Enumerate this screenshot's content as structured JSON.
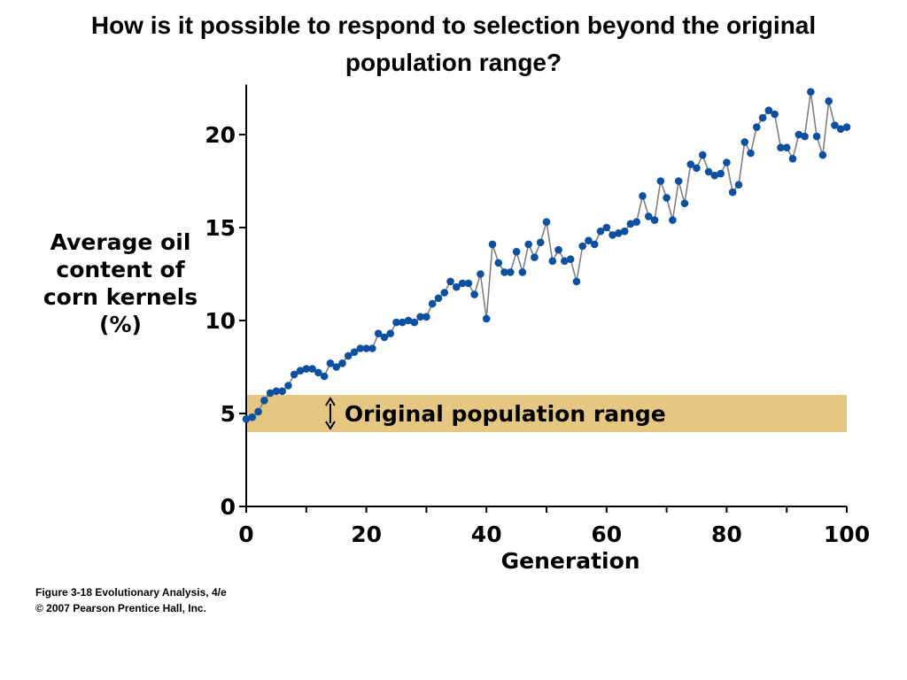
{
  "slide": {
    "title_line1": "How is it possible to respond to selection beyond the original",
    "title_line2": "population range?"
  },
  "chart_data": {
    "type": "line",
    "xlabel": "Generation",
    "ylabel_lines": [
      "Average oil",
      "content of",
      "corn kernels",
      "(%)"
    ],
    "xlim": [
      0,
      100
    ],
    "ylim": [
      0,
      22.5
    ],
    "x_ticks": [
      0,
      20,
      40,
      60,
      80,
      100
    ],
    "y_ticks": [
      0,
      5,
      10,
      15,
      20
    ],
    "grid": false,
    "marker_color": "#0d4fa0",
    "line_color": "#7f7f7f",
    "band": {
      "label": "Original population range",
      "y_range": [
        4.0,
        6.0
      ],
      "color": "#e5c682"
    },
    "x": [
      0,
      1,
      2,
      3,
      4,
      5,
      6,
      7,
      8,
      9,
      10,
      11,
      12,
      13,
      14,
      15,
      16,
      17,
      18,
      19,
      20,
      21,
      22,
      23,
      24,
      25,
      26,
      27,
      28,
      29,
      30,
      31,
      32,
      33,
      34,
      35,
      36,
      37,
      38,
      39,
      40,
      41,
      42,
      43,
      44,
      45,
      46,
      47,
      48,
      49,
      50,
      51,
      52,
      53,
      54,
      55,
      56,
      57,
      58,
      59,
      60,
      61,
      62,
      63,
      64,
      65,
      66,
      67,
      68,
      69,
      70,
      71,
      72,
      73,
      74,
      75,
      76,
      77,
      78,
      79,
      80,
      81,
      82,
      83,
      84,
      85,
      86,
      87,
      88,
      89,
      90,
      91,
      92,
      93,
      94,
      95,
      96,
      97,
      98,
      99,
      100
    ],
    "y": [
      4.7,
      4.8,
      5.1,
      5.7,
      6.1,
      6.2,
      6.2,
      6.5,
      7.1,
      7.3,
      7.4,
      7.4,
      7.2,
      7.0,
      7.7,
      7.5,
      7.7,
      8.1,
      8.3,
      8.5,
      8.5,
      8.5,
      9.3,
      9.1,
      9.3,
      9.9,
      9.9,
      10.0,
      9.9,
      10.2,
      10.2,
      10.9,
      11.2,
      11.5,
      12.1,
      11.8,
      12.0,
      12.0,
      11.4,
      12.5,
      10.1,
      14.1,
      13.1,
      12.6,
      12.6,
      13.7,
      12.6,
      14.1,
      13.4,
      14.2,
      15.3,
      13.2,
      13.8,
      13.2,
      13.3,
      12.1,
      14.0,
      14.3,
      14.1,
      14.8,
      15.0,
      14.6,
      14.7,
      14.8,
      15.2,
      15.3,
      16.7,
      15.6,
      15.4,
      17.5,
      16.6,
      15.4,
      17.5,
      16.3,
      18.4,
      18.2,
      18.9,
      18.0,
      17.8,
      17.9,
      18.5,
      16.9,
      17.3,
      19.6,
      19.0,
      20.4,
      20.9,
      21.3,
      21.1,
      19.3,
      19.3,
      18.7,
      20.0,
      19.9,
      22.3,
      19.9,
      18.9,
      21.8,
      20.5,
      20.3,
      20.4
    ]
  },
  "caption": {
    "line1": "Figure 3-18  Evolutionary Analysis, 4/e",
    "line2": "© 2007 Pearson Prentice Hall, Inc."
  }
}
